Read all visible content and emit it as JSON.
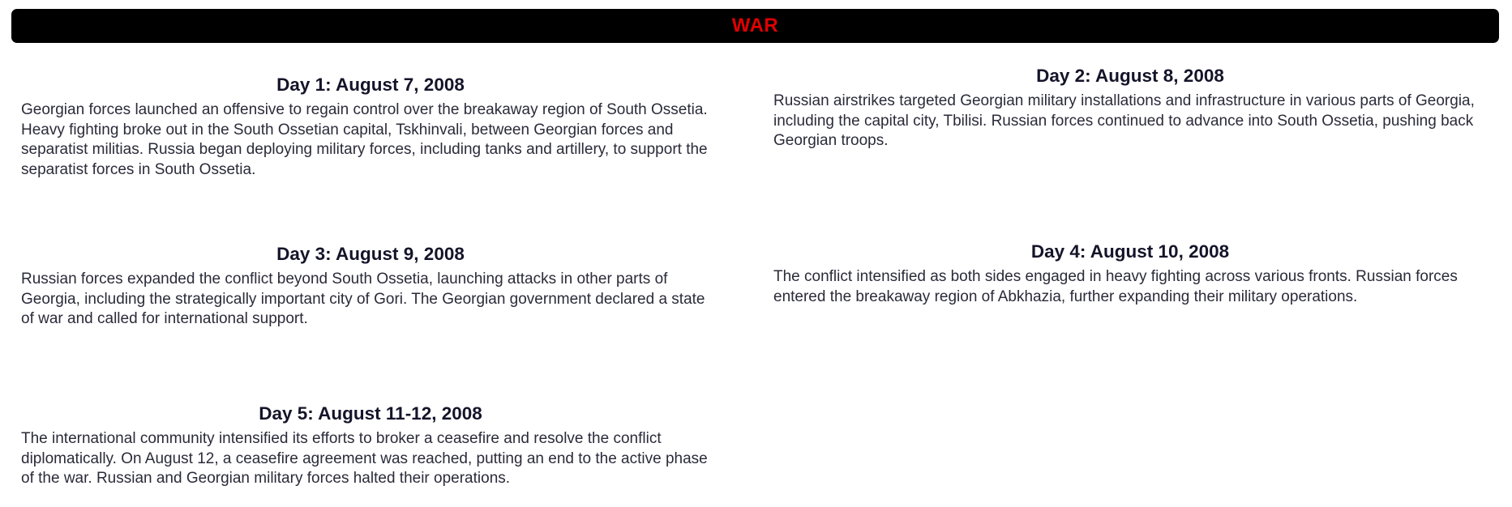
{
  "banner": {
    "title": "WAR"
  },
  "days": [
    {
      "title": "Day 1: August 7, 2008",
      "text": "Georgian forces launched an offensive to regain control over the breakaway region of South Ossetia. Heavy fighting broke out in the South Ossetian capital, Tskhinvali, between Georgian forces and separatist militias. Russia began deploying military forces, including tanks and artillery, to support the separatist forces in South Ossetia."
    },
    {
      "title": "Day 2: August 8, 2008",
      "text": "Russian airstrikes targeted Georgian military installations and infrastructure in various parts of Georgia, including the capital city, Tbilisi. Russian forces continued to advance into South Ossetia, pushing back Georgian troops."
    },
    {
      "title": "Day 3: August 9, 2008",
      "text": "Russian forces expanded the conflict beyond South Ossetia, launching attacks in other parts of Georgia, including the strategically important city of Gori. The Georgian government declared a state of war and called for international support."
    },
    {
      "title": "Day 4: August 10, 2008",
      "text": "The conflict intensified as both sides engaged in heavy fighting across various fronts. Russian forces entered the breakaway region of Abkhazia, further expanding their military operations."
    },
    {
      "title": "Day 5: August 11-12, 2008",
      "text": "The international community intensified its efforts to broker a ceasefire and resolve the conflict diplomatically. On August 12, a ceasefire agreement was reached, putting an end to the active phase of the war. Russian and Georgian military forces halted their operations."
    }
  ]
}
